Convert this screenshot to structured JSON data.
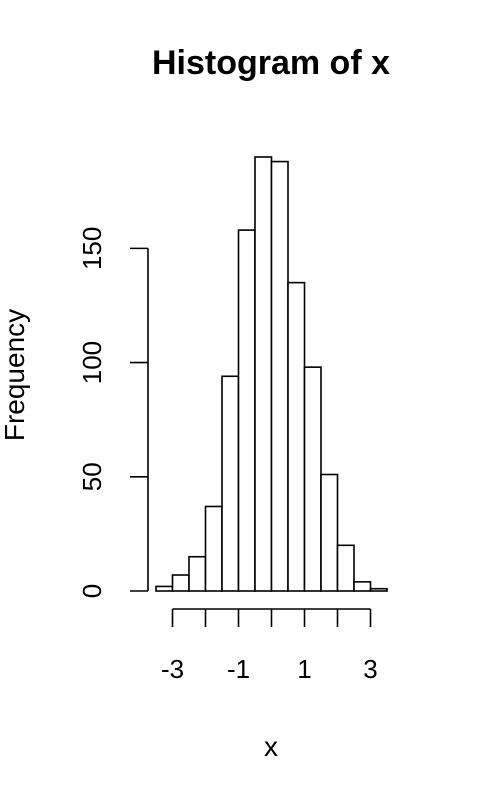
{
  "chart_data": {
    "type": "bar",
    "title": "Histogram of x",
    "xlabel": "x",
    "ylabel": "Frequency",
    "bin_edges": [
      -3.5,
      -3.0,
      -2.5,
      -2.0,
      -1.5,
      -1.0,
      -0.5,
      0.0,
      0.5,
      1.0,
      1.5,
      2.0,
      2.5,
      3.0,
      3.5
    ],
    "values": [
      2,
      7,
      15,
      37,
      94,
      158,
      190,
      188,
      135,
      98,
      51,
      20,
      4,
      1
    ],
    "xlim": [
      -3.5,
      3.5
    ],
    "ylim": [
      0,
      190
    ],
    "x_ticks": [
      -3,
      -2,
      -1,
      0,
      1,
      2,
      3
    ],
    "x_tick_labels": [
      "-3",
      "",
      "-1",
      "",
      "1",
      "",
      "3"
    ],
    "y_ticks": [
      0,
      50,
      100,
      150
    ],
    "y_tick_labels": [
      "0",
      "50",
      "100",
      "150"
    ],
    "grid": false,
    "legend": "none"
  }
}
